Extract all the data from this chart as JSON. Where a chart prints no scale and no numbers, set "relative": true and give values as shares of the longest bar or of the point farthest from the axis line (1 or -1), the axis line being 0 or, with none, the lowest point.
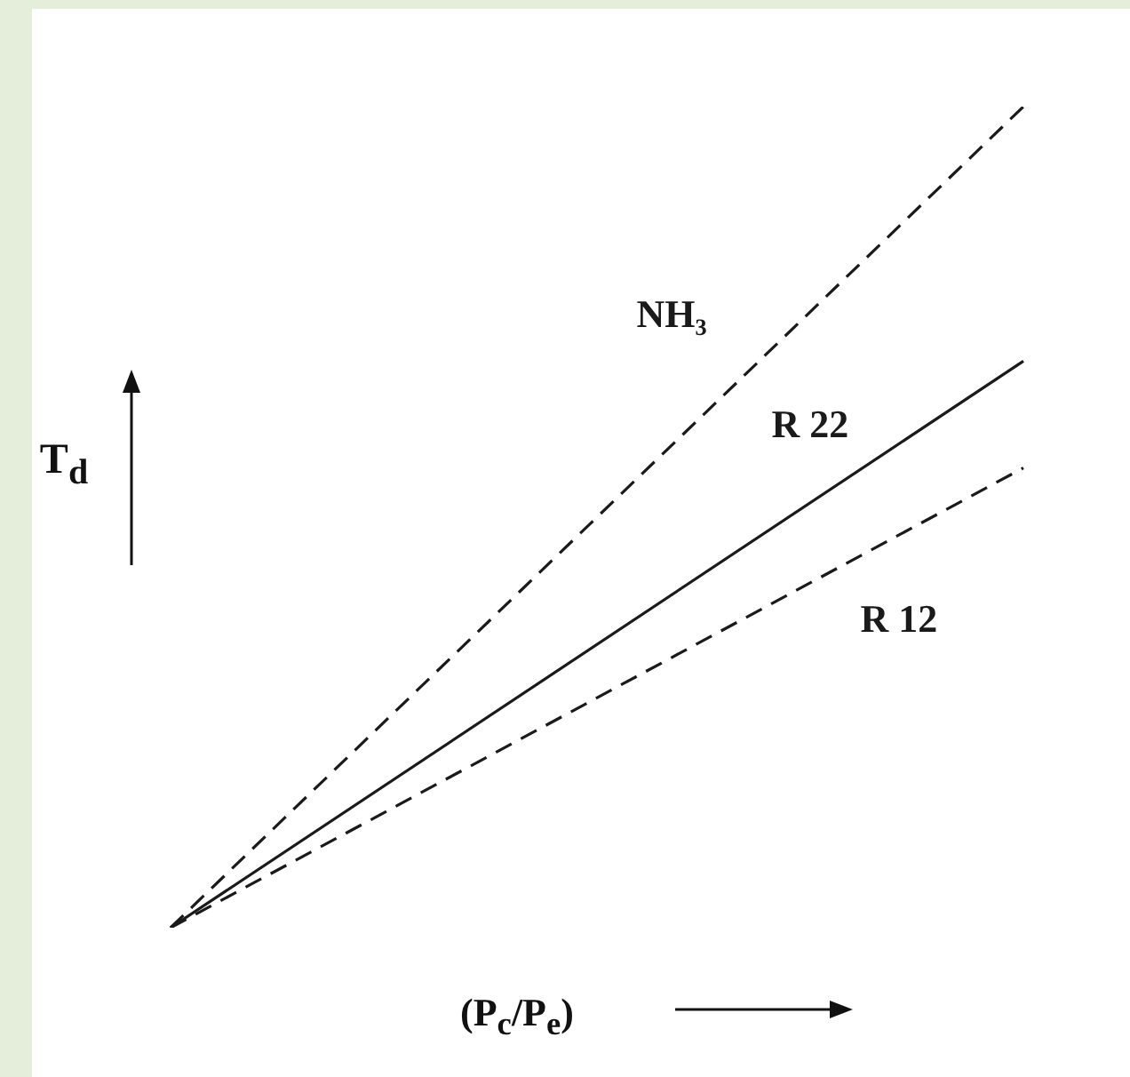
{
  "chart_data": {
    "type": "line",
    "xlabel": "(P$_{c}$/P$_{e}$)",
    "ylabel": "T$_{d}$",
    "categories": [
      null,
      null
    ],
    "relative": true,
    "legend": false,
    "series": [
      {
        "name": "NH₃",
        "color": "#1a1a1a",
        "line_style": "dashed",
        "values": [
          0,
          1
        ]
      },
      {
        "name": "R 22",
        "color": "#1a1a1a",
        "line_style": "solid",
        "values": [
          0,
          0.69
        ]
      },
      {
        "name": "R 12",
        "color": "#1a1a1a",
        "line_style": "dashed",
        "values": [
          0,
          0.56
        ]
      }
    ]
  }
}
